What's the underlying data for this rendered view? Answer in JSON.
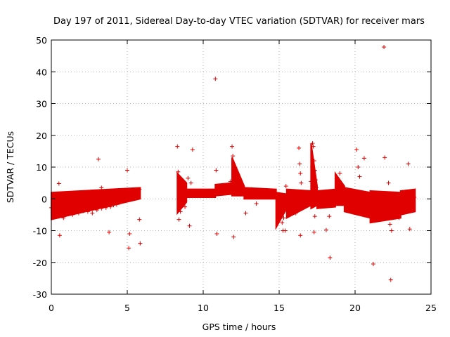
{
  "chart_data": {
    "type": "scatter",
    "title": "Day 197 of 2011, Sidereal Day-to-day VTEC variation (SDTVAR) for receiver mars",
    "xlabel": "GPS time / hours",
    "ylabel": "SDTVAR / TECUs",
    "xlim": [
      0,
      25
    ],
    "ylim": [
      -30,
      50
    ],
    "xticks": [
      0,
      5,
      10,
      15,
      20,
      25
    ],
    "xtick_labels": [
      "0",
      "5",
      "10",
      "15",
      "20",
      "25"
    ],
    "yticks": [
      -30,
      -20,
      -10,
      0,
      10,
      20,
      30,
      40,
      50
    ],
    "ytick_labels": [
      "-30",
      "-20",
      "-10",
      "0",
      "10",
      "20",
      "30",
      "40",
      "50"
    ],
    "grid": true,
    "marker": "+",
    "color": "#e00000",
    "series": [
      {
        "name": "SDTVAR",
        "points": [
          [
            0.0,
            -2.8
          ],
          [
            0.1,
            -0.5
          ],
          [
            0.15,
            -4.5
          ],
          [
            0.2,
            1.5
          ],
          [
            0.3,
            -3.0
          ],
          [
            0.4,
            0.8
          ],
          [
            0.5,
            -5.5
          ],
          [
            0.6,
            -1.5
          ],
          [
            0.7,
            1.2
          ],
          [
            0.8,
            -6.0
          ],
          [
            0.9,
            -2.0
          ],
          [
            1.0,
            0.5
          ],
          [
            1.1,
            -4.0
          ],
          [
            1.2,
            1.0
          ],
          [
            1.3,
            -2.5
          ],
          [
            1.4,
            -5.0
          ],
          [
            1.5,
            0.0
          ],
          [
            1.6,
            -3.5
          ],
          [
            1.7,
            1.8
          ],
          [
            1.8,
            -4.5
          ],
          [
            1.9,
            -1.0
          ],
          [
            2.0,
            0.8
          ],
          [
            2.1,
            -3.8
          ],
          [
            2.2,
            -1.2
          ],
          [
            2.3,
            1.0
          ],
          [
            2.4,
            -4.0
          ],
          [
            2.5,
            -2.0
          ],
          [
            2.6,
            0.5
          ],
          [
            2.7,
            -4.5
          ],
          [
            2.8,
            -1.5
          ],
          [
            2.9,
            1.2
          ],
          [
            3.0,
            -3.5
          ],
          [
            3.1,
            -0.8
          ],
          [
            3.2,
            2.0
          ],
          [
            3.3,
            -3.0
          ],
          [
            3.4,
            -1.0
          ],
          [
            3.5,
            1.5
          ],
          [
            3.6,
            -2.8
          ],
          [
            3.7,
            -0.5
          ],
          [
            3.8,
            2.5
          ],
          [
            3.9,
            -2.5
          ],
          [
            4.0,
            0.0
          ],
          [
            4.1,
            -2.0
          ],
          [
            4.2,
            0.5
          ],
          [
            4.3,
            -1.8
          ],
          [
            4.4,
            0.8
          ],
          [
            4.5,
            -1.2
          ],
          [
            4.6,
            1.0
          ],
          [
            4.7,
            -0.8
          ],
          [
            4.8,
            1.2
          ],
          [
            4.9,
            -0.5
          ],
          [
            5.0,
            0.5
          ],
          [
            5.1,
            1.0
          ],
          [
            5.2,
            0.2
          ],
          [
            5.3,
            1.5
          ],
          [
            5.4,
            0.8
          ],
          [
            5.5,
            2.0
          ],
          [
            5.6,
            1.5
          ],
          [
            5.7,
            2.5
          ],
          [
            5.8,
            3.0
          ],
          [
            0.5,
            4.8
          ],
          [
            0.55,
            -11.5
          ],
          [
            3.1,
            12.5
          ],
          [
            3.3,
            3.5
          ],
          [
            3.8,
            -10.5
          ],
          [
            5.0,
            9.0
          ],
          [
            5.15,
            -11.0
          ],
          [
            5.1,
            -15.5
          ],
          [
            5.8,
            -6.5
          ],
          [
            5.85,
            -14.0
          ],
          [
            8.3,
            16.5
          ],
          [
            8.35,
            8.5
          ],
          [
            8.4,
            -6.5
          ],
          [
            8.5,
            -4.0
          ],
          [
            8.6,
            6.0
          ],
          [
            8.7,
            2.0
          ],
          [
            8.8,
            -2.5
          ],
          [
            9.0,
            6.5
          ],
          [
            9.1,
            -8.5
          ],
          [
            9.3,
            15.5
          ],
          [
            9.2,
            5.0
          ],
          [
            9.4,
            2.0
          ],
          [
            9.6,
            1.5
          ],
          [
            9.8,
            2.0
          ],
          [
            10.0,
            1.8
          ],
          [
            10.2,
            1.5
          ],
          [
            10.4,
            2.2
          ],
          [
            10.6,
            1.8
          ],
          [
            10.8,
            37.8
          ],
          [
            10.85,
            9.0
          ],
          [
            10.9,
            -11.0
          ],
          [
            11.0,
            3.5
          ],
          [
            11.2,
            2.5
          ],
          [
            11.4,
            4.0
          ],
          [
            11.6,
            3.0
          ],
          [
            11.8,
            5.5
          ],
          [
            11.9,
            16.5
          ],
          [
            11.95,
            13.5
          ],
          [
            12.0,
            11.0
          ],
          [
            12.05,
            9.0
          ],
          [
            12.1,
            7.5
          ],
          [
            12.2,
            6.0
          ],
          [
            12.3,
            5.0
          ],
          [
            12.4,
            4.0
          ],
          [
            12.5,
            3.5
          ],
          [
            12.6,
            2.5
          ],
          [
            12.7,
            2.0
          ],
          [
            12.8,
            -4.5
          ],
          [
            12.0,
            -12.0
          ],
          [
            12.9,
            3.0
          ],
          [
            13.0,
            2.5
          ],
          [
            13.2,
            3.0
          ],
          [
            13.4,
            2.5
          ],
          [
            13.5,
            -1.5
          ],
          [
            13.6,
            2.0
          ],
          [
            13.8,
            1.8
          ],
          [
            14.0,
            2.5
          ],
          [
            14.2,
            2.0
          ],
          [
            14.4,
            1.5
          ],
          [
            14.6,
            2.0
          ],
          [
            14.8,
            1.0
          ],
          [
            15.0,
            0.5
          ],
          [
            15.1,
            -4.0
          ],
          [
            15.2,
            -7.5
          ],
          [
            15.25,
            -10.0
          ],
          [
            15.3,
            -6.0
          ],
          [
            15.4,
            -10.0
          ],
          [
            15.45,
            4.0
          ],
          [
            15.5,
            -2.0
          ],
          [
            15.6,
            1.0
          ],
          [
            15.8,
            0.5
          ],
          [
            16.0,
            1.5
          ],
          [
            16.1,
            -4.5
          ],
          [
            16.2,
            -2.0
          ],
          [
            16.3,
            16.0
          ],
          [
            16.35,
            11.0
          ],
          [
            16.4,
            8.0
          ],
          [
            16.45,
            5.0
          ],
          [
            16.4,
            -11.5
          ],
          [
            16.5,
            -3.0
          ],
          [
            16.6,
            0.0
          ],
          [
            16.8,
            1.0
          ],
          [
            17.0,
            0.5
          ],
          [
            17.1,
            5.5
          ],
          [
            17.2,
            17.5
          ],
          [
            17.25,
            16.5
          ],
          [
            17.3,
            12.0
          ],
          [
            17.35,
            9.0
          ],
          [
            17.4,
            6.0
          ],
          [
            17.45,
            3.5
          ],
          [
            17.3,
            -10.5
          ],
          [
            17.35,
            -5.5
          ],
          [
            17.5,
            -1.0
          ],
          [
            17.7,
            1.0
          ],
          [
            17.9,
            -0.5
          ],
          [
            18.0,
            -0.5
          ],
          [
            18.1,
            -9.8
          ],
          [
            18.3,
            -5.5
          ],
          [
            18.35,
            -18.5
          ],
          [
            18.4,
            1.0
          ],
          [
            18.6,
            2.0
          ],
          [
            18.8,
            5.0
          ],
          [
            19.0,
            8.0
          ],
          [
            19.2,
            3.5
          ],
          [
            19.4,
            1.0
          ],
          [
            19.6,
            -0.5
          ],
          [
            19.8,
            -1.5
          ],
          [
            20.0,
            -2.0
          ],
          [
            20.1,
            15.5
          ],
          [
            20.2,
            10.0
          ],
          [
            20.3,
            7.0
          ],
          [
            20.4,
            -3.0
          ],
          [
            20.6,
            12.8
          ],
          [
            20.7,
            -4.0
          ],
          [
            20.8,
            -1.0
          ],
          [
            21.0,
            -2.5
          ],
          [
            21.2,
            -20.5
          ],
          [
            21.3,
            -3.0
          ],
          [
            21.5,
            -5.0
          ],
          [
            21.7,
            -1.0
          ],
          [
            21.9,
            47.8
          ],
          [
            21.95,
            13.0
          ],
          [
            22.0,
            -3.5
          ],
          [
            22.2,
            5.0
          ],
          [
            22.3,
            -8.0
          ],
          [
            22.35,
            -25.5
          ],
          [
            22.4,
            -10.0
          ],
          [
            22.5,
            -3.0
          ],
          [
            22.7,
            -5.5
          ],
          [
            22.9,
            -6.0
          ],
          [
            23.1,
            -4.0
          ],
          [
            23.3,
            -2.0
          ],
          [
            23.5,
            11.0
          ],
          [
            23.6,
            -9.5
          ],
          [
            23.7,
            2.0
          ],
          [
            23.8,
            -3.0
          ],
          [
            23.9,
            0.5
          ]
        ]
      }
    ],
    "bands": [
      {
        "x_start": 0.0,
        "x_end": 5.85,
        "low": -6.5,
        "high": 2.0,
        "low_end": 0.0,
        "high_end": 3.5
      },
      {
        "x_start": 8.3,
        "x_end": 8.9,
        "low": -4.5,
        "high": 8.0,
        "low_end": -1.0,
        "high_end": 5.0
      },
      {
        "x_start": 8.9,
        "x_end": 10.8,
        "low": 0.5,
        "high": 3.0,
        "low_end": 0.5,
        "high_end": 3.0
      },
      {
        "x_start": 10.8,
        "x_end": 11.9,
        "low": 1.0,
        "high": 4.5,
        "low_end": 1.5,
        "high_end": 5.0
      },
      {
        "x_start": 11.9,
        "x_end": 12.7,
        "low": 1.0,
        "high": 13.0,
        "low_end": 1.0,
        "high_end": 4.0
      },
      {
        "x_start": 12.7,
        "x_end": 14.8,
        "low": 0.0,
        "high": 3.5,
        "low_end": 0.0,
        "high_end": 3.0
      },
      {
        "x_start": 14.8,
        "x_end": 15.5,
        "low": -9.0,
        "high": 2.0,
        "low_end": -3.0,
        "high_end": 1.5
      },
      {
        "x_start": 15.5,
        "x_end": 17.1,
        "low": -6.0,
        "high": 3.0,
        "low_end": -2.0,
        "high_end": 2.5
      },
      {
        "x_start": 17.1,
        "x_end": 17.5,
        "low": -3.0,
        "high": 17.5,
        "low_end": -2.0,
        "high_end": 4.0
      },
      {
        "x_start": 17.5,
        "x_end": 18.7,
        "low": -3.0,
        "high": 2.5,
        "low_end": -2.5,
        "high_end": 3.0
      },
      {
        "x_start": 18.7,
        "x_end": 19.3,
        "low": -2.0,
        "high": 8.0,
        "low_end": -2.0,
        "high_end": 4.0
      },
      {
        "x_start": 19.3,
        "x_end": 21.0,
        "low": -4.0,
        "high": 3.5,
        "low_end": -6.0,
        "high_end": 2.0
      },
      {
        "x_start": 21.0,
        "x_end": 23.0,
        "low": -7.5,
        "high": 2.5,
        "low_end": -6.0,
        "high_end": 2.0
      },
      {
        "x_start": 23.0,
        "x_end": 23.95,
        "low": -5.0,
        "high": 2.5,
        "low_end": -4.0,
        "high_end": 3.0
      }
    ]
  }
}
